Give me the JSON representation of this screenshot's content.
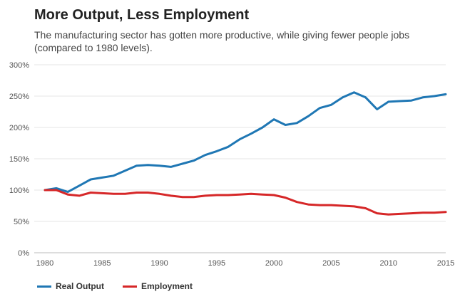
{
  "chart_data": {
    "type": "line",
    "title": "More Output, Less Employment",
    "subtitle": "The manufacturing sector has gotten more productive, while giving fewer people jobs (compared to 1980 levels).",
    "xlabel": "",
    "ylabel": "",
    "xlim": [
      1980,
      2015
    ],
    "ylim": [
      0,
      300
    ],
    "x_ticks": [
      1980,
      1985,
      1990,
      1995,
      2000,
      2005,
      2010,
      2015
    ],
    "y_ticks": [
      0,
      50,
      100,
      150,
      200,
      250,
      300
    ],
    "y_tick_labels": [
      "0%",
      "50%",
      "100%",
      "150%",
      "200%",
      "250%",
      "300%"
    ],
    "grid": "horizontal",
    "legend_position": "bottom-left",
    "x": [
      1980,
      1981,
      1982,
      1983,
      1984,
      1985,
      1986,
      1987,
      1988,
      1989,
      1990,
      1991,
      1992,
      1993,
      1994,
      1995,
      1996,
      1997,
      1998,
      1999,
      2000,
      2001,
      2002,
      2003,
      2004,
      2005,
      2006,
      2007,
      2008,
      2009,
      2010,
      2011,
      2012,
      2013,
      2014,
      2015
    ],
    "series": [
      {
        "name": "Real Output",
        "color": "#1f77b4",
        "values": [
          100,
          103,
          97,
          107,
          117,
          120,
          123,
          131,
          139,
          140,
          139,
          137,
          142,
          147,
          156,
          162,
          169,
          181,
          190,
          200,
          213,
          204,
          207,
          218,
          231,
          236,
          248,
          256,
          248,
          229,
          241,
          242,
          243,
          248,
          250,
          253
        ]
      },
      {
        "name": "Employment",
        "color": "#d62728",
        "values": [
          100,
          100,
          93,
          91,
          96,
          95,
          94,
          94,
          96,
          96,
          94,
          91,
          89,
          89,
          91,
          92,
          92,
          93,
          94,
          93,
          92,
          88,
          81,
          77,
          76,
          76,
          75,
          74,
          71,
          63,
          61,
          62,
          63,
          64,
          64,
          65
        ]
      }
    ]
  }
}
